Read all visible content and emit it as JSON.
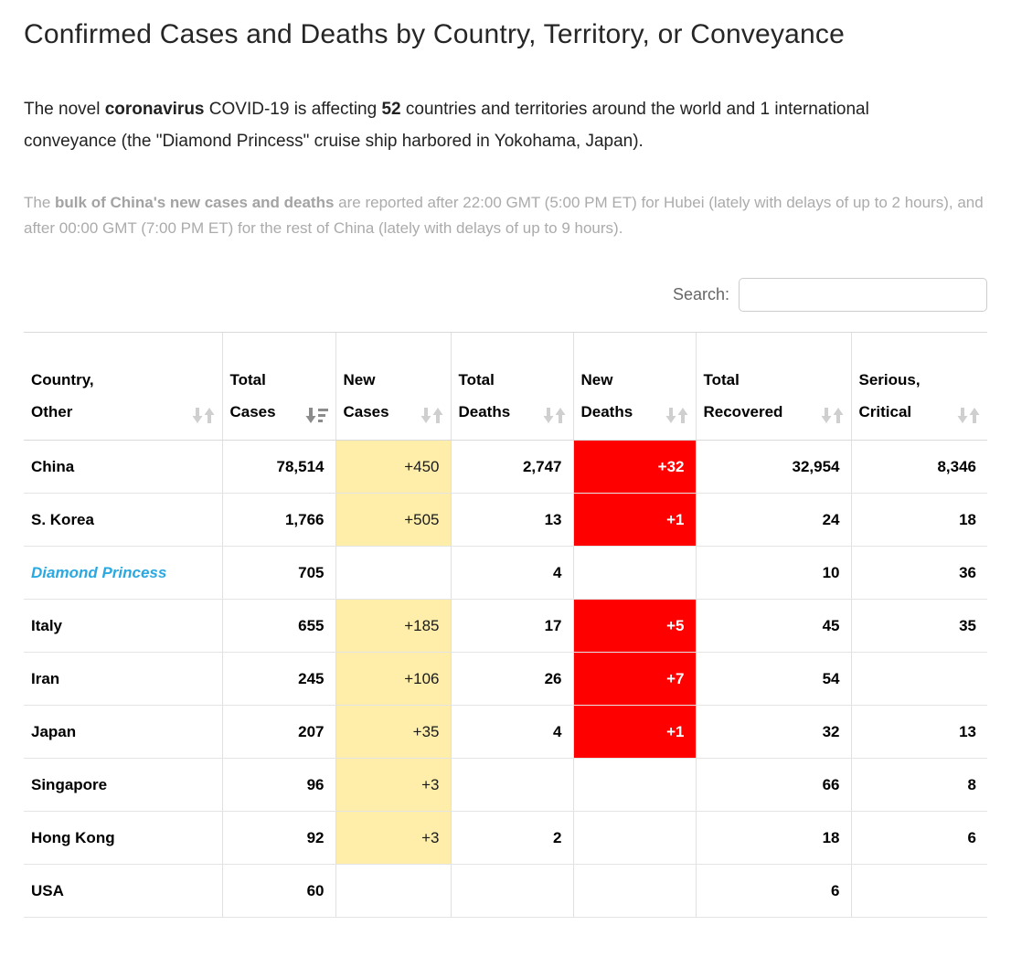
{
  "header": {
    "title": "Confirmed Cases and Deaths by Country, Territory, or Conveyance"
  },
  "intro": {
    "seg1": "The novel ",
    "bold1": "coronavirus",
    "seg2": " COVID-19 is affecting ",
    "bold2": "52",
    "seg3": " countries and territories around the world and 1 international conveyance (the \"Diamond Princess\" cruise ship harbored in Yokohama, Japan)."
  },
  "note": {
    "seg1": "The ",
    "bold1": "bulk of China's new cases and deaths",
    "seg2": " are reported after 22:00 GMT (5:00 PM ET) for Hubei (lately with delays of up to 2 hours), and after 00:00 GMT (7:00 PM ET) for the rest of China (lately with delays of up to 9 hours)."
  },
  "search": {
    "label": "Search:",
    "value": "",
    "placeholder": ""
  },
  "table": {
    "columns": [
      {
        "id": "country",
        "line1": "Country,",
        "line2": "Other",
        "sort": "none"
      },
      {
        "id": "total_cases",
        "line1": "Total",
        "line2": "Cases",
        "sort": "desc"
      },
      {
        "id": "new_cases",
        "line1": "New",
        "line2": "Cases",
        "sort": "none"
      },
      {
        "id": "total_deaths",
        "line1": "Total",
        "line2": "Deaths",
        "sort": "none"
      },
      {
        "id": "new_deaths",
        "line1": "New",
        "line2": "Deaths",
        "sort": "none"
      },
      {
        "id": "total_recovered",
        "line1": "Total",
        "line2": "Recovered",
        "sort": "none"
      },
      {
        "id": "serious_critical",
        "line1": "Serious,",
        "line2": "Critical",
        "sort": "none"
      }
    ],
    "rows": [
      {
        "country": "China",
        "total_cases": "78,514",
        "new_cases": "+450",
        "total_deaths": "2,747",
        "new_deaths": "+32",
        "total_recovered": "32,954",
        "serious_critical": "8,346",
        "is_link": false
      },
      {
        "country": "S. Korea",
        "total_cases": "1,766",
        "new_cases": "+505",
        "total_deaths": "13",
        "new_deaths": "+1",
        "total_recovered": "24",
        "serious_critical": "18",
        "is_link": false
      },
      {
        "country": "Diamond Princess",
        "total_cases": "705",
        "new_cases": "",
        "total_deaths": "4",
        "new_deaths": "",
        "total_recovered": "10",
        "serious_critical": "36",
        "is_link": true
      },
      {
        "country": "Italy",
        "total_cases": "655",
        "new_cases": "+185",
        "total_deaths": "17",
        "new_deaths": "+5",
        "total_recovered": "45",
        "serious_critical": "35",
        "is_link": false
      },
      {
        "country": "Iran",
        "total_cases": "245",
        "new_cases": "+106",
        "total_deaths": "26",
        "new_deaths": "+7",
        "total_recovered": "54",
        "serious_critical": "",
        "is_link": false
      },
      {
        "country": "Japan",
        "total_cases": "207",
        "new_cases": "+35",
        "total_deaths": "4",
        "new_deaths": "+1",
        "total_recovered": "32",
        "serious_critical": "13",
        "is_link": false
      },
      {
        "country": "Singapore",
        "total_cases": "96",
        "new_cases": "+3",
        "total_deaths": "",
        "new_deaths": "",
        "total_recovered": "66",
        "serious_critical": "8",
        "is_link": false
      },
      {
        "country": "Hong Kong",
        "total_cases": "92",
        "new_cases": "+3",
        "total_deaths": "2",
        "new_deaths": "",
        "total_recovered": "18",
        "serious_critical": "6",
        "is_link": false
      },
      {
        "country": "USA",
        "total_cases": "60",
        "new_cases": "",
        "total_deaths": "",
        "new_deaths": "",
        "total_recovered": "6",
        "serious_critical": "",
        "is_link": false
      }
    ]
  },
  "colors": {
    "highlight_yellow": "#FFEEAA",
    "highlight_red": "#FF0000",
    "link_blue": "#29A8E1",
    "sort_icon_inactive": "#CFCFCF",
    "sort_icon_active": "#8C8C8C"
  }
}
